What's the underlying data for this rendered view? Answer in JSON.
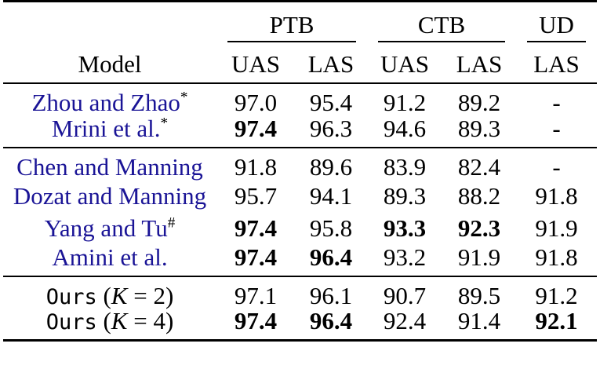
{
  "palette": {
    "link_blue": "#1a1496",
    "text": "#000000",
    "rule": "#000000",
    "background": "#ffffff"
  },
  "table": {
    "model_header": "Model",
    "column_groups": [
      {
        "label": "PTB",
        "span": 2
      },
      {
        "label": "CTB",
        "span": 2
      },
      {
        "label": "UD",
        "span": 1
      }
    ],
    "sub_headers": [
      "UAS",
      "LAS",
      "UAS",
      "LAS",
      "LAS"
    ],
    "sections": [
      {
        "rows": [
          {
            "model": "Zhou and Zhao",
            "superscript": "*",
            "values": [
              "97.0",
              "95.4",
              "91.2",
              "89.2",
              "-"
            ],
            "bold": [
              false,
              false,
              false,
              false,
              false
            ]
          },
          {
            "model": "Mrini et al.",
            "superscript": "*",
            "values": [
              "97.4",
              "96.3",
              "94.6",
              "89.3",
              "-"
            ],
            "bold": [
              true,
              false,
              false,
              false,
              false
            ]
          }
        ]
      },
      {
        "rows": [
          {
            "model": "Chen and Manning",
            "superscript": "",
            "values": [
              "91.8",
              "89.6",
              "83.9",
              "82.4",
              "-"
            ],
            "bold": [
              false,
              false,
              false,
              false,
              false
            ]
          },
          {
            "model": "Dozat and Manning",
            "superscript": "",
            "values": [
              "95.7",
              "94.1",
              "89.3",
              "88.2",
              "91.8"
            ],
            "bold": [
              false,
              false,
              false,
              false,
              false
            ]
          },
          {
            "model": "Yang and Tu",
            "superscript": "#",
            "values": [
              "97.4",
              "95.8",
              "93.3",
              "92.3",
              "91.9"
            ],
            "bold": [
              true,
              false,
              true,
              true,
              false
            ]
          },
          {
            "model": "Amini et al.",
            "superscript": "",
            "values": [
              "97.4",
              "96.4",
              "93.2",
              "91.9",
              "91.8"
            ],
            "bold": [
              true,
              true,
              false,
              false,
              false
            ]
          }
        ]
      },
      {
        "rows": [
          {
            "model_mono": "Ours",
            "k_open": "(",
            "k_var": "K",
            "k_rest": "= 2)",
            "values": [
              "97.1",
              "96.1",
              "90.7",
              "89.5",
              "91.2"
            ],
            "bold": [
              false,
              false,
              false,
              false,
              false
            ]
          },
          {
            "model_mono": "Ours",
            "k_open": "(",
            "k_var": "K",
            "k_rest": "= 4)",
            "values": [
              "97.4",
              "96.4",
              "92.4",
              "91.4",
              "92.1"
            ],
            "bold": [
              true,
              true,
              false,
              false,
              true
            ]
          }
        ]
      }
    ]
  }
}
